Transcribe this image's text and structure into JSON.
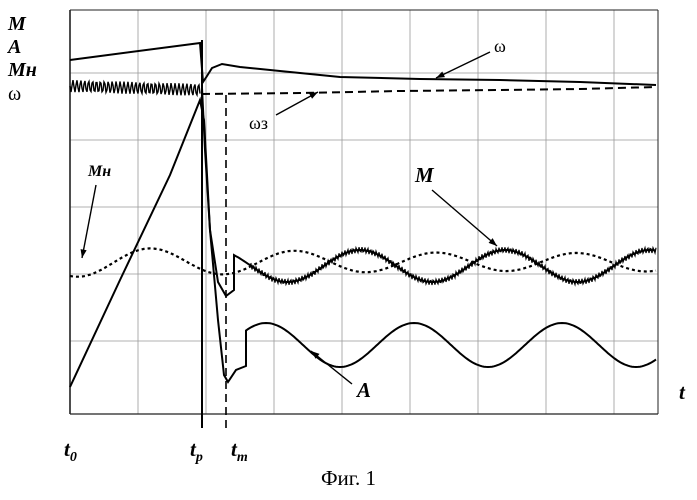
{
  "chart_data": {
    "type": "line",
    "y_axis_labels": [
      "M",
      "A",
      "Mн",
      "ω"
    ],
    "x_axis_label": "t",
    "x_ticks": {
      "t0": {
        "main": "t",
        "sub": "0"
      },
      "tp": {
        "main": "t",
        "sub": "p"
      },
      "tm": {
        "main": "t",
        "sub": "m"
      }
    },
    "series": [
      {
        "name": "ω"
      },
      {
        "name": "ωз"
      },
      {
        "name": "M"
      },
      {
        "name": "Mн"
      },
      {
        "name": "A"
      }
    ],
    "grid": true
  },
  "caption": "Фиг. 1"
}
